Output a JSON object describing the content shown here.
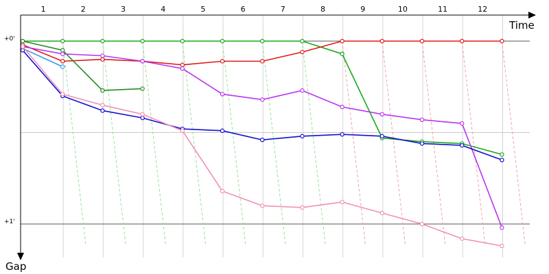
{
  "chart_data": {
    "type": "line",
    "xlabel": "Time",
    "ylabel": "Gap",
    "x_ticks": [
      "1",
      "2",
      "3",
      "4",
      "5",
      "6",
      "7",
      "8",
      "9",
      "10",
      "11",
      "12"
    ],
    "y_ticks": [
      {
        "value": 0,
        "label": "+0'"
      },
      {
        "value": 1,
        "label": "+1'"
      }
    ],
    "ylim": [
      0,
      1.2
    ],
    "series": [
      {
        "color": "#18a818",
        "values": [
          0,
          0,
          0,
          0,
          0,
          0,
          0,
          0,
          0.07,
          0.53,
          0.55,
          0.56,
          0.62
        ]
      },
      {
        "color": "#e01818",
        "values": [
          0.02,
          0.11,
          0.1,
          0.11,
          0.13,
          0.11,
          0.11,
          0.06,
          0,
          0,
          0,
          0,
          0
        ]
      },
      {
        "color": "#228b22",
        "values": [
          0,
          0.05,
          0.27,
          0.26
        ]
      },
      {
        "color": "#3399ee",
        "values": [
          0.04,
          0.14
        ]
      },
      {
        "color": "#bb33ee",
        "values": [
          0.03,
          0.07,
          0.08,
          0.11,
          0.15,
          0.29,
          0.32,
          0.27,
          0.36,
          0.4,
          0.43,
          0.45,
          1.02
        ]
      },
      {
        "color": "#1010cc",
        "values": [
          0.05,
          0.3,
          0.38,
          0.42,
          0.48,
          0.49,
          0.54,
          0.52,
          0.51,
          0.52,
          0.56,
          0.57,
          0.65
        ]
      },
      {
        "color": "#f090b8",
        "values": [
          0.03,
          0.29,
          0.35,
          0.4,
          0.49,
          0.82,
          0.9,
          0.91,
          0.88,
          0.94,
          1.0,
          1.08,
          1.12
        ]
      }
    ]
  }
}
